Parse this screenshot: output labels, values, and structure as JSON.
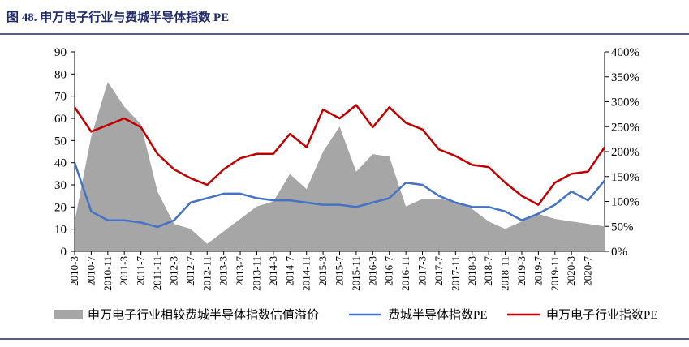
{
  "chart_data": {
    "type": "line",
    "title": "图 48. 申万电子行业与费城半导体指数 PE",
    "categories": [
      "2010-3",
      "2010-7",
      "2010-11",
      "2011-3",
      "2011-7",
      "2011-11",
      "2012-3",
      "2012-7",
      "2012-11",
      "2013-3",
      "2013-7",
      "2013-11",
      "2014-3",
      "2014-7",
      "2014-11",
      "2015-3",
      "2015-7",
      "2015-11",
      "2016-3",
      "2016-7",
      "2016-11",
      "2017-3",
      "2017-7",
      "2017-11",
      "2018-3",
      "2018-7",
      "2018-11",
      "2019-3",
      "2019-7",
      "2019-11",
      "2020-3",
      "2020-7",
      null
    ],
    "ylim": [
      0,
      90
    ],
    "yticks": [
      0,
      10,
      20,
      30,
      40,
      50,
      60,
      70,
      80,
      90
    ],
    "y2lim": [
      0,
      400
    ],
    "y2ticks": [
      {
        "value": 0,
        "label": "0%"
      },
      {
        "value": 50,
        "label": "50%"
      },
      {
        "value": 100,
        "label": "100%"
      },
      {
        "value": 150,
        "label": "150%"
      },
      {
        "value": 200,
        "label": "200%"
      },
      {
        "value": 250,
        "label": "250%"
      },
      {
        "value": 300,
        "label": "300%"
      },
      {
        "value": 350,
        "label": "350%"
      },
      {
        "value": 400,
        "label": "400%"
      }
    ],
    "series": [
      {
        "name": "申万电子行业相较费城半导体指数估值溢价",
        "type": "area",
        "axis": "y2",
        "color": "#a6a6a6",
        "values": [
          60,
          230,
          340,
          290,
          255,
          120,
          55,
          45,
          15,
          40,
          65,
          90,
          100,
          155,
          125,
          200,
          250,
          160,
          195,
          190,
          90,
          105,
          105,
          100,
          85,
          60,
          45,
          60,
          75,
          65,
          60,
          55,
          50
        ]
      },
      {
        "name": "费城半导体指数PE",
        "type": "line",
        "color": "#4472c4",
        "values": [
          40,
          18,
          14,
          14,
          13,
          11,
          14,
          22,
          24,
          26,
          26,
          24,
          23,
          23,
          22,
          21,
          21,
          20,
          22,
          24,
          31,
          30,
          25,
          22,
          20,
          20,
          18,
          14,
          17,
          21,
          27,
          23,
          32
        ]
      },
      {
        "name": "申万电子行业指数PE",
        "type": "line",
        "color": "#c00000",
        "values": [
          65,
          54,
          57,
          60,
          56,
          44,
          37,
          33,
          30,
          37,
          42,
          44,
          44,
          53,
          47,
          64,
          60,
          66,
          56,
          65,
          58,
          55,
          46,
          43,
          39,
          38,
          31,
          25,
          21,
          31,
          35,
          36,
          47
        ]
      }
    ]
  }
}
